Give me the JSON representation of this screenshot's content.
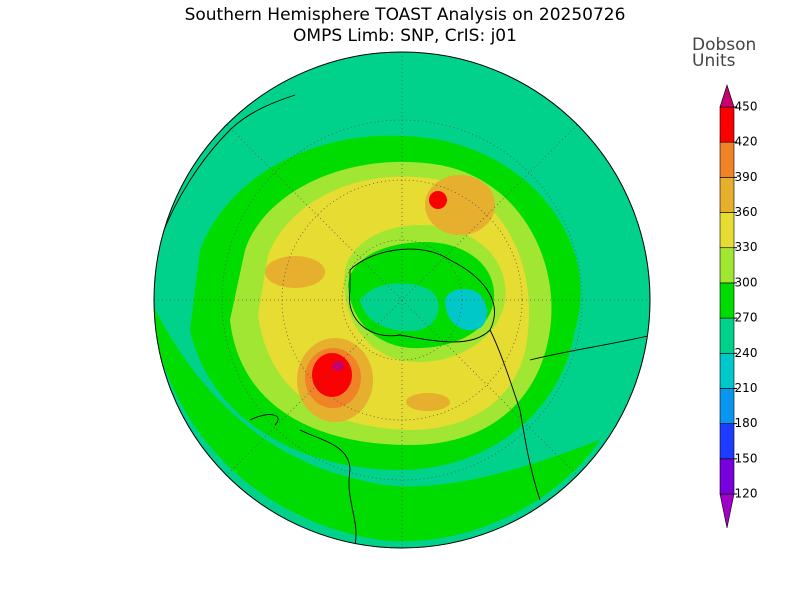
{
  "title": "Southern Hemisphere TOAST Analysis on 20250726",
  "subtitle": "OMPS Limb: SNP, CrIS: j01",
  "colorbar": {
    "label": [
      "Dobson",
      "Units"
    ],
    "ticks": [
      120,
      150,
      180,
      210,
      240,
      270,
      300,
      330,
      360,
      390,
      420,
      450
    ],
    "colors": [
      "#a000c8",
      "#7800dc",
      "#1e3cff",
      "#0a96f0",
      "#00c8c8",
      "#00d28c",
      "#00dc00",
      "#a0e632",
      "#e6dc32",
      "#e6af2d",
      "#f08228",
      "#fa0000",
      "#c8006e"
    ]
  }
}
